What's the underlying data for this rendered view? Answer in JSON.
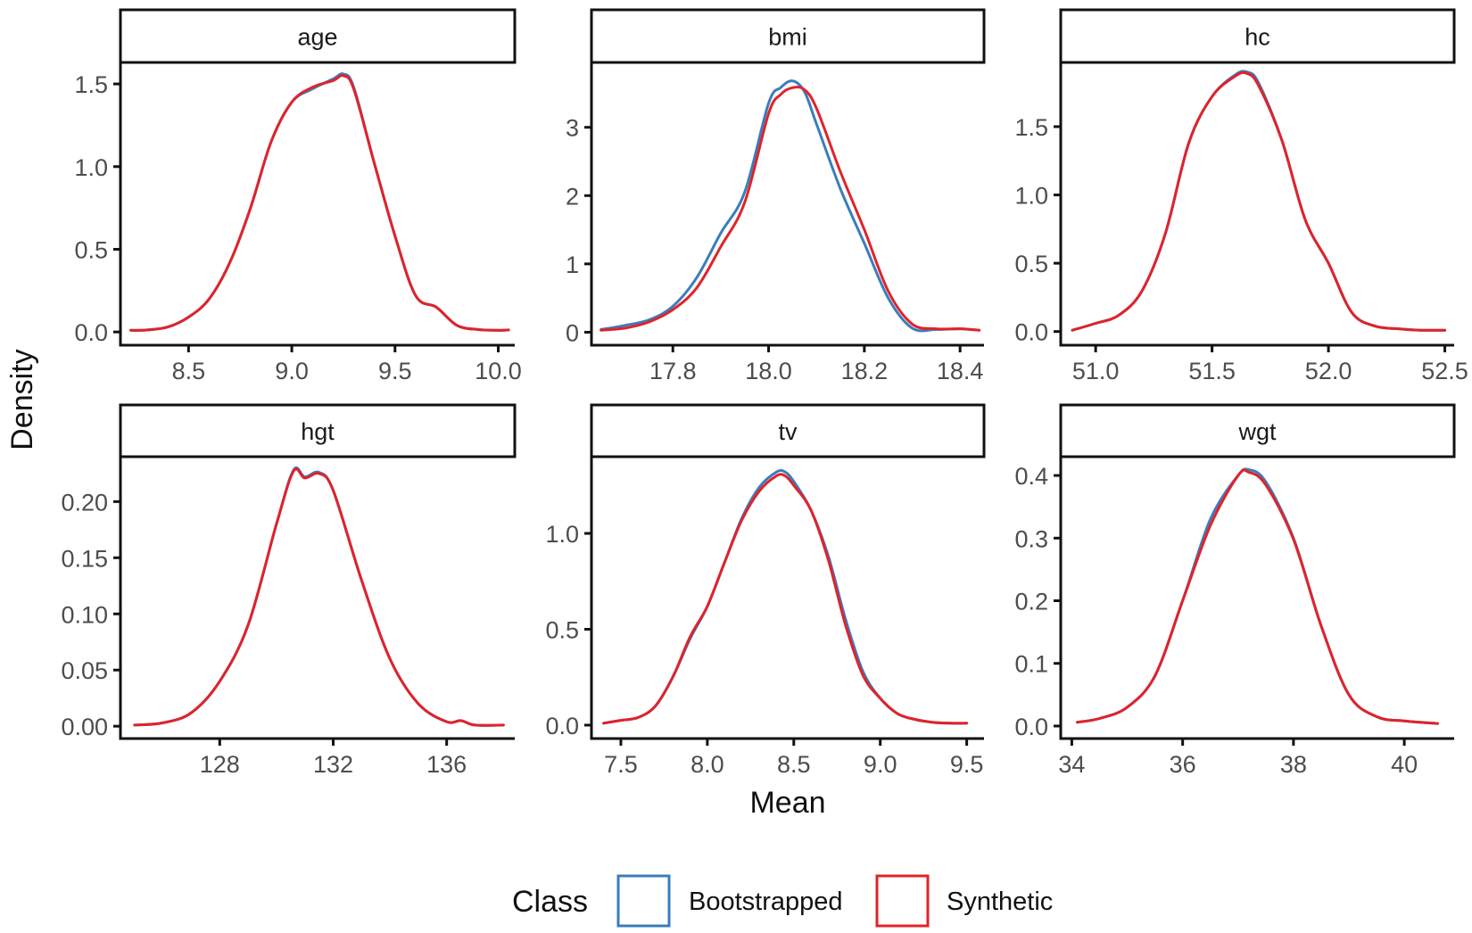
{
  "colors": {
    "bootstrapped": "#3A7DBE",
    "synthetic": "#E0232A",
    "axis": "#111111",
    "tick_label": "#4d4d4d",
    "strip_fill": "#ffffff"
  },
  "labels": {
    "ylabel": "Density",
    "xlabel": "Mean"
  },
  "legend": {
    "title": "Class",
    "placement": "bottom",
    "entries": [
      {
        "key": "bootstrapped",
        "label": "Bootstrapped"
      },
      {
        "key": "synthetic",
        "label": "Synthetic"
      }
    ]
  },
  "chart_data": [
    {
      "type": "line",
      "panel": "age",
      "xlim": [
        8.17,
        10.08
      ],
      "ylim": [
        -0.08,
        1.63
      ],
      "xticks": [
        8.5,
        9.0,
        9.5,
        10.0
      ],
      "xtick_labels": [
        "8.5",
        "9.0",
        "9.5",
        "10.0"
      ],
      "yticks": [
        0,
        0.5,
        1.0,
        1.5
      ],
      "ytick_labels": [
        "0.0",
        "0.5",
        "1.0",
        "1.5"
      ],
      "series": [
        {
          "name": "Bootstrapped",
          "x": [
            8.22,
            8.3,
            8.4,
            8.5,
            8.6,
            8.7,
            8.8,
            8.9,
            9.0,
            9.1,
            9.2,
            9.25,
            9.3,
            9.4,
            9.5,
            9.6,
            9.7,
            9.8,
            9.9,
            10.0,
            10.05
          ],
          "y": [
            0.01,
            0.012,
            0.03,
            0.09,
            0.2,
            0.42,
            0.75,
            1.15,
            1.39,
            1.47,
            1.53,
            1.56,
            1.48,
            1.02,
            0.58,
            0.22,
            0.15,
            0.04,
            0.015,
            0.01,
            0.012
          ]
        },
        {
          "name": "Synthetic",
          "x": [
            8.22,
            8.3,
            8.4,
            8.5,
            8.6,
            8.7,
            8.8,
            8.9,
            9.0,
            9.1,
            9.2,
            9.25,
            9.3,
            9.4,
            9.5,
            9.6,
            9.7,
            9.8,
            9.9,
            10.0,
            10.05
          ],
          "y": [
            0.01,
            0.012,
            0.03,
            0.09,
            0.2,
            0.42,
            0.75,
            1.15,
            1.39,
            1.48,
            1.52,
            1.55,
            1.47,
            1.02,
            0.58,
            0.22,
            0.15,
            0.04,
            0.015,
            0.01,
            0.012
          ]
        }
      ]
    },
    {
      "type": "line",
      "panel": "bmi",
      "xlim": [
        17.63,
        18.45
      ],
      "ylim": [
        -0.19,
        3.95
      ],
      "xticks": [
        17.8,
        18.0,
        18.2,
        18.4
      ],
      "xtick_labels": [
        "17.8",
        "18.0",
        "18.2",
        "18.4"
      ],
      "yticks": [
        0,
        1,
        2,
        3
      ],
      "ytick_labels": [
        "0",
        "1",
        "2",
        "3"
      ],
      "series": [
        {
          "name": "Bootstrapped",
          "x": [
            17.65,
            17.7,
            17.75,
            17.8,
            17.85,
            17.9,
            17.95,
            18.0,
            18.025,
            18.05,
            18.075,
            18.1,
            18.15,
            18.2,
            18.25,
            18.3,
            18.35,
            18.4,
            18.44
          ],
          "y": [
            0.04,
            0.1,
            0.18,
            0.38,
            0.8,
            1.45,
            2.05,
            3.35,
            3.58,
            3.68,
            3.52,
            3.05,
            2.1,
            1.3,
            0.5,
            0.06,
            0.04,
            0.05,
            0.03
          ]
        },
        {
          "name": "Synthetic",
          "x": [
            17.65,
            17.7,
            17.75,
            17.8,
            17.85,
            17.9,
            17.95,
            18.0,
            18.025,
            18.05,
            18.075,
            18.1,
            18.15,
            18.2,
            18.25,
            18.3,
            18.35,
            18.4,
            18.44
          ],
          "y": [
            0.03,
            0.06,
            0.15,
            0.33,
            0.65,
            1.25,
            1.9,
            3.2,
            3.48,
            3.58,
            3.55,
            3.28,
            2.35,
            1.5,
            0.6,
            0.12,
            0.05,
            0.05,
            0.03
          ]
        }
      ]
    },
    {
      "type": "line",
      "panel": "hc",
      "xlim": [
        50.85,
        52.54
      ],
      "ylim": [
        -0.1,
        1.97
      ],
      "xticks": [
        51.0,
        51.5,
        52.0,
        52.5
      ],
      "xtick_labels": [
        "51.0",
        "51.5",
        "52.0",
        "52.5"
      ],
      "yticks": [
        0,
        0.5,
        1.0,
        1.5
      ],
      "ytick_labels": [
        "0.0",
        "0.5",
        "1.0",
        "1.5"
      ],
      "series": [
        {
          "name": "Bootstrapped",
          "x": [
            50.9,
            51.0,
            51.1,
            51.2,
            51.3,
            51.4,
            51.5,
            51.6,
            51.65,
            51.7,
            51.8,
            51.9,
            52.0,
            52.1,
            52.2,
            52.3,
            52.4,
            52.5
          ],
          "y": [
            0.01,
            0.06,
            0.12,
            0.3,
            0.72,
            1.38,
            1.72,
            1.88,
            1.9,
            1.82,
            1.4,
            0.82,
            0.5,
            0.14,
            0.04,
            0.02,
            0.01,
            0.01
          ]
        },
        {
          "name": "Synthetic",
          "x": [
            50.9,
            51.0,
            51.1,
            51.2,
            51.3,
            51.4,
            51.5,
            51.6,
            51.65,
            51.7,
            51.8,
            51.9,
            52.0,
            52.1,
            52.2,
            52.3,
            52.4,
            52.5
          ],
          "y": [
            0.01,
            0.06,
            0.12,
            0.3,
            0.72,
            1.38,
            1.72,
            1.87,
            1.89,
            1.8,
            1.4,
            0.82,
            0.5,
            0.14,
            0.04,
            0.02,
            0.01,
            0.01
          ]
        }
      ]
    },
    {
      "type": "line",
      "panel": "hgt",
      "xlim": [
        124.5,
        138.4
      ],
      "ylim": [
        -0.011,
        0.24
      ],
      "xticks": [
        128,
        132,
        136
      ],
      "xtick_labels": [
        "128",
        "132",
        "136"
      ],
      "yticks": [
        0,
        0.05,
        0.1,
        0.15,
        0.2
      ],
      "ytick_labels": [
        "0.00",
        "0.05",
        "0.10",
        "0.15",
        "0.20"
      ],
      "series": [
        {
          "name": "Bootstrapped",
          "x": [
            125,
            126,
            127,
            128,
            129,
            130,
            130.6,
            131,
            131.5,
            132,
            133,
            134,
            135,
            136,
            136.5,
            137,
            138
          ],
          "y": [
            0.001,
            0.003,
            0.012,
            0.04,
            0.09,
            0.18,
            0.228,
            0.222,
            0.226,
            0.21,
            0.13,
            0.06,
            0.02,
            0.004,
            0.005,
            0.001,
            0.001
          ]
        },
        {
          "name": "Synthetic",
          "x": [
            125,
            126,
            127,
            128,
            129,
            130,
            130.6,
            131,
            131.5,
            132,
            133,
            134,
            135,
            136,
            136.5,
            137,
            138
          ],
          "y": [
            0.001,
            0.003,
            0.012,
            0.04,
            0.09,
            0.18,
            0.227,
            0.221,
            0.225,
            0.21,
            0.13,
            0.06,
            0.02,
            0.004,
            0.005,
            0.001,
            0.001
          ]
        }
      ]
    },
    {
      "type": "line",
      "panel": "tv",
      "xlim": [
        7.33,
        9.6
      ],
      "ylim": [
        -0.07,
        1.4
      ],
      "xticks": [
        7.5,
        8.0,
        8.5,
        9.0,
        9.5
      ],
      "xtick_labels": [
        "7.5",
        "8.0",
        "8.5",
        "9.0",
        "9.5"
      ],
      "yticks": [
        0,
        0.5,
        1.0
      ],
      "ytick_labels": [
        "0.0",
        "0.5",
        "1.0"
      ],
      "series": [
        {
          "name": "Bootstrapped",
          "x": [
            7.4,
            7.5,
            7.6,
            7.7,
            7.8,
            7.9,
            8.0,
            8.1,
            8.2,
            8.3,
            8.4,
            8.45,
            8.5,
            8.6,
            8.7,
            8.8,
            8.9,
            9.0,
            9.1,
            9.2,
            9.3,
            9.4,
            9.5
          ],
          "y": [
            0.01,
            0.025,
            0.04,
            0.1,
            0.25,
            0.45,
            0.62,
            0.85,
            1.08,
            1.24,
            1.32,
            1.32,
            1.27,
            1.12,
            0.88,
            0.55,
            0.28,
            0.14,
            0.06,
            0.03,
            0.015,
            0.01,
            0.01
          ]
        },
        {
          "name": "Synthetic",
          "x": [
            7.4,
            7.5,
            7.6,
            7.7,
            7.8,
            7.9,
            8.0,
            8.1,
            8.2,
            8.3,
            8.4,
            8.45,
            8.5,
            8.6,
            8.7,
            8.8,
            8.9,
            9.0,
            9.1,
            9.2,
            9.3,
            9.4,
            9.5
          ],
          "y": [
            0.01,
            0.025,
            0.04,
            0.1,
            0.25,
            0.46,
            0.62,
            0.85,
            1.07,
            1.22,
            1.3,
            1.3,
            1.25,
            1.12,
            0.86,
            0.52,
            0.26,
            0.14,
            0.06,
            0.03,
            0.015,
            0.01,
            0.01
          ]
        }
      ]
    },
    {
      "type": "line",
      "panel": "wgt",
      "xlim": [
        33.8,
        40.9
      ],
      "ylim": [
        -0.02,
        0.43
      ],
      "xticks": [
        34,
        36,
        38,
        40
      ],
      "xtick_labels": [
        "34",
        "36",
        "38",
        "40"
      ],
      "yticks": [
        0,
        0.1,
        0.2,
        0.3,
        0.4
      ],
      "ytick_labels": [
        "0.0",
        "0.1",
        "0.2",
        "0.3",
        "0.4"
      ],
      "series": [
        {
          "name": "Bootstrapped",
          "x": [
            34.1,
            34.5,
            35,
            35.5,
            36,
            36.5,
            37,
            37.2,
            37.5,
            38,
            38.5,
            39,
            39.5,
            40,
            40.6
          ],
          "y": [
            0.006,
            0.012,
            0.03,
            0.08,
            0.2,
            0.33,
            0.4,
            0.409,
            0.39,
            0.3,
            0.16,
            0.05,
            0.015,
            0.008,
            0.004
          ]
        },
        {
          "name": "Synthetic",
          "x": [
            34.1,
            34.5,
            35,
            35.5,
            36,
            36.5,
            37,
            37.2,
            37.5,
            38,
            38.5,
            39,
            39.5,
            40,
            40.6
          ],
          "y": [
            0.006,
            0.012,
            0.03,
            0.08,
            0.2,
            0.32,
            0.4,
            0.405,
            0.385,
            0.298,
            0.16,
            0.05,
            0.015,
            0.008,
            0.004
          ]
        }
      ]
    }
  ]
}
